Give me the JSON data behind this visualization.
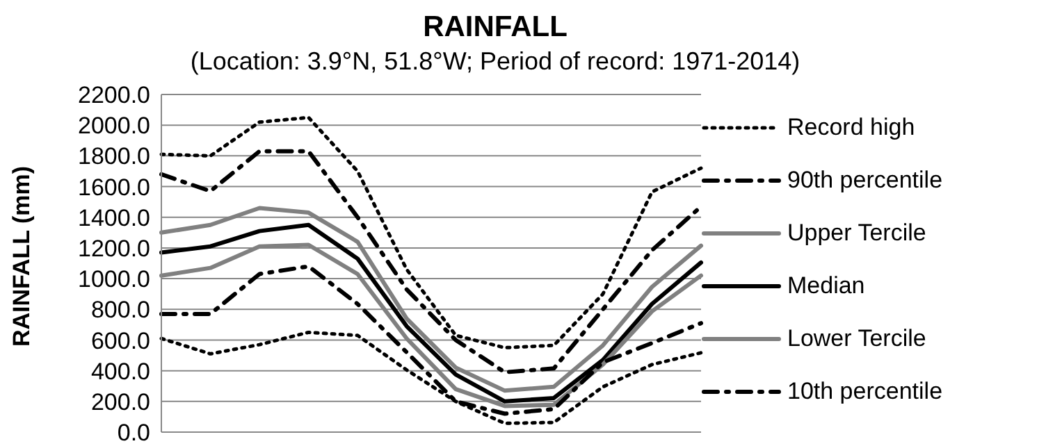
{
  "chart_data": {
    "type": "line",
    "title": "RAINFALL",
    "subtitle": "(Location: 3.9°N, 51.8°W; Period of record: 1971-2014)",
    "ylabel": "RAINFALL (mm)",
    "categories": [
      null,
      null,
      null,
      null,
      null,
      null,
      null,
      null,
      null,
      null,
      null,
      null
    ],
    "ylim": [
      0,
      2200
    ],
    "yticks": [
      {
        "value": 0,
        "label": "0.0"
      },
      {
        "value": 200,
        "label": "200.0"
      },
      {
        "value": 400,
        "label": "400.0"
      },
      {
        "value": 600,
        "label": "600.0"
      },
      {
        "value": 800,
        "label": "800.0"
      },
      {
        "value": 1000,
        "label": "1000.0"
      },
      {
        "value": 1200,
        "label": "1200.0"
      },
      {
        "value": 1400,
        "label": "1400.0"
      },
      {
        "value": 1600,
        "label": "1600.0"
      },
      {
        "value": 1800,
        "label": "1800.0"
      },
      {
        "value": 2000,
        "label": "2000.0"
      },
      {
        "value": 2200,
        "label": "2200.0"
      }
    ],
    "grid": "y",
    "legend": "right",
    "marker": "none",
    "tick_labels": "y",
    "series": [
      {
        "name": "Record high",
        "color": "#000000",
        "line_style": "dotted",
        "values": [
          1810,
          1800,
          2020,
          2050,
          1700,
          1060,
          630,
          550,
          565,
          900,
          1565,
          1720
        ]
      },
      {
        "name": "90th percentile",
        "color": "#000000",
        "line_style": "dashed",
        "values": [
          1680,
          1570,
          1830,
          1830,
          1400,
          930,
          600,
          390,
          415,
          800,
          1185,
          1470
        ]
      },
      {
        "name": "Upper Tercile",
        "color": "#808080",
        "line_style": "solid",
        "values": [
          1300,
          1350,
          1460,
          1430,
          1240,
          740,
          420,
          270,
          295,
          565,
          946,
          1215
        ]
      },
      {
        "name": "Median",
        "color": "#000000",
        "line_style": "solid",
        "values": [
          1170,
          1210,
          1310,
          1350,
          1130,
          690,
          375,
          200,
          222,
          470,
          835,
          1105
        ]
      },
      {
        "name": "Lower Tercile",
        "color": "#808080",
        "line_style": "solid",
        "values": [
          1020,
          1070,
          1210,
          1220,
          1030,
          610,
          280,
          170,
          178,
          440,
          787,
          1020
        ]
      },
      {
        "name": "10th percentile",
        "color": "#000000",
        "line_style": "dashed",
        "values": [
          770,
          770,
          1030,
          1080,
          835,
          520,
          200,
          120,
          150,
          455,
          580,
          710
        ]
      },
      {
        "color": "#000000",
        "line_style": "dotted",
        "values": [
          610,
          510,
          570,
          650,
          630,
          405,
          200,
          57,
          63,
          295,
          440,
          517
        ]
      }
    ]
  }
}
